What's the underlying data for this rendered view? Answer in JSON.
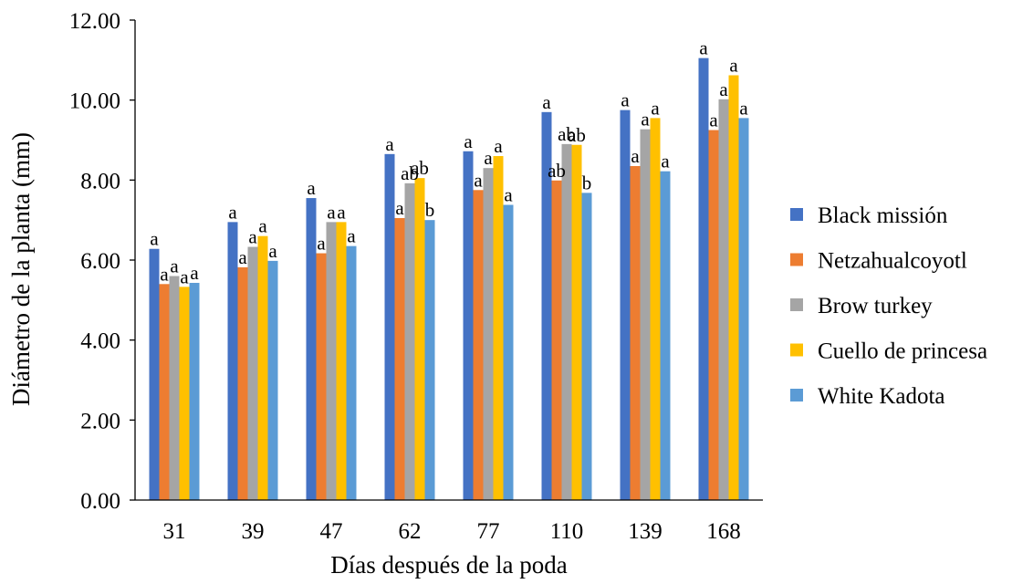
{
  "chart_data": {
    "type": "bar",
    "title": "",
    "xlabel": "Días después de la poda",
    "ylabel": "Diámetro de la planta (mm)",
    "ylim": [
      0,
      12
    ],
    "y_ticks": [
      "0.00",
      "2.00",
      "4.00",
      "6.00",
      "8.00",
      "10.00",
      "12.00"
    ],
    "grid": false,
    "legend_position": "right",
    "categories": [
      "31",
      "39",
      "47",
      "62",
      "77",
      "110",
      "139",
      "168"
    ],
    "series": [
      {
        "name": "Black missión",
        "color": "#4472C4",
        "values": [
          6.28,
          6.95,
          7.55,
          8.65,
          8.72,
          9.7,
          9.75,
          11.05
        ],
        "labels": [
          "a",
          "a",
          "a",
          "a",
          "a",
          "a",
          "a",
          "a"
        ]
      },
      {
        "name": "Netzahualcoyotl",
        "color": "#ED7D31",
        "values": [
          5.4,
          5.82,
          6.17,
          7.05,
          7.75,
          7.99,
          8.35,
          9.25
        ],
        "labels": [
          "a",
          "a",
          "a",
          "a",
          "a",
          "ab",
          "a",
          "a"
        ]
      },
      {
        "name": "Brow turkey",
        "color": "#A5A5A5",
        "values": [
          5.6,
          6.33,
          6.95,
          7.92,
          8.3,
          8.9,
          9.27,
          10.02
        ],
        "labels": [
          "a",
          "a",
          "a",
          "ab",
          "a",
          "ab",
          "a",
          "a"
        ]
      },
      {
        "name": "Cuello de princesa",
        "color": "#FFC000",
        "values": [
          5.33,
          6.6,
          6.95,
          8.05,
          8.6,
          8.88,
          9.55,
          10.62
        ],
        "labels": [
          "a",
          "a",
          "a",
          "ab",
          "a",
          "ab",
          "a",
          "a"
        ]
      },
      {
        "name": "White Kadota",
        "color": "#5B9BD5",
        "values": [
          5.43,
          5.98,
          6.35,
          7.0,
          7.38,
          7.68,
          8.22,
          9.55
        ],
        "labels": [
          "a",
          "a",
          "a",
          "b",
          "a",
          "b",
          "a",
          "a"
        ]
      }
    ]
  }
}
